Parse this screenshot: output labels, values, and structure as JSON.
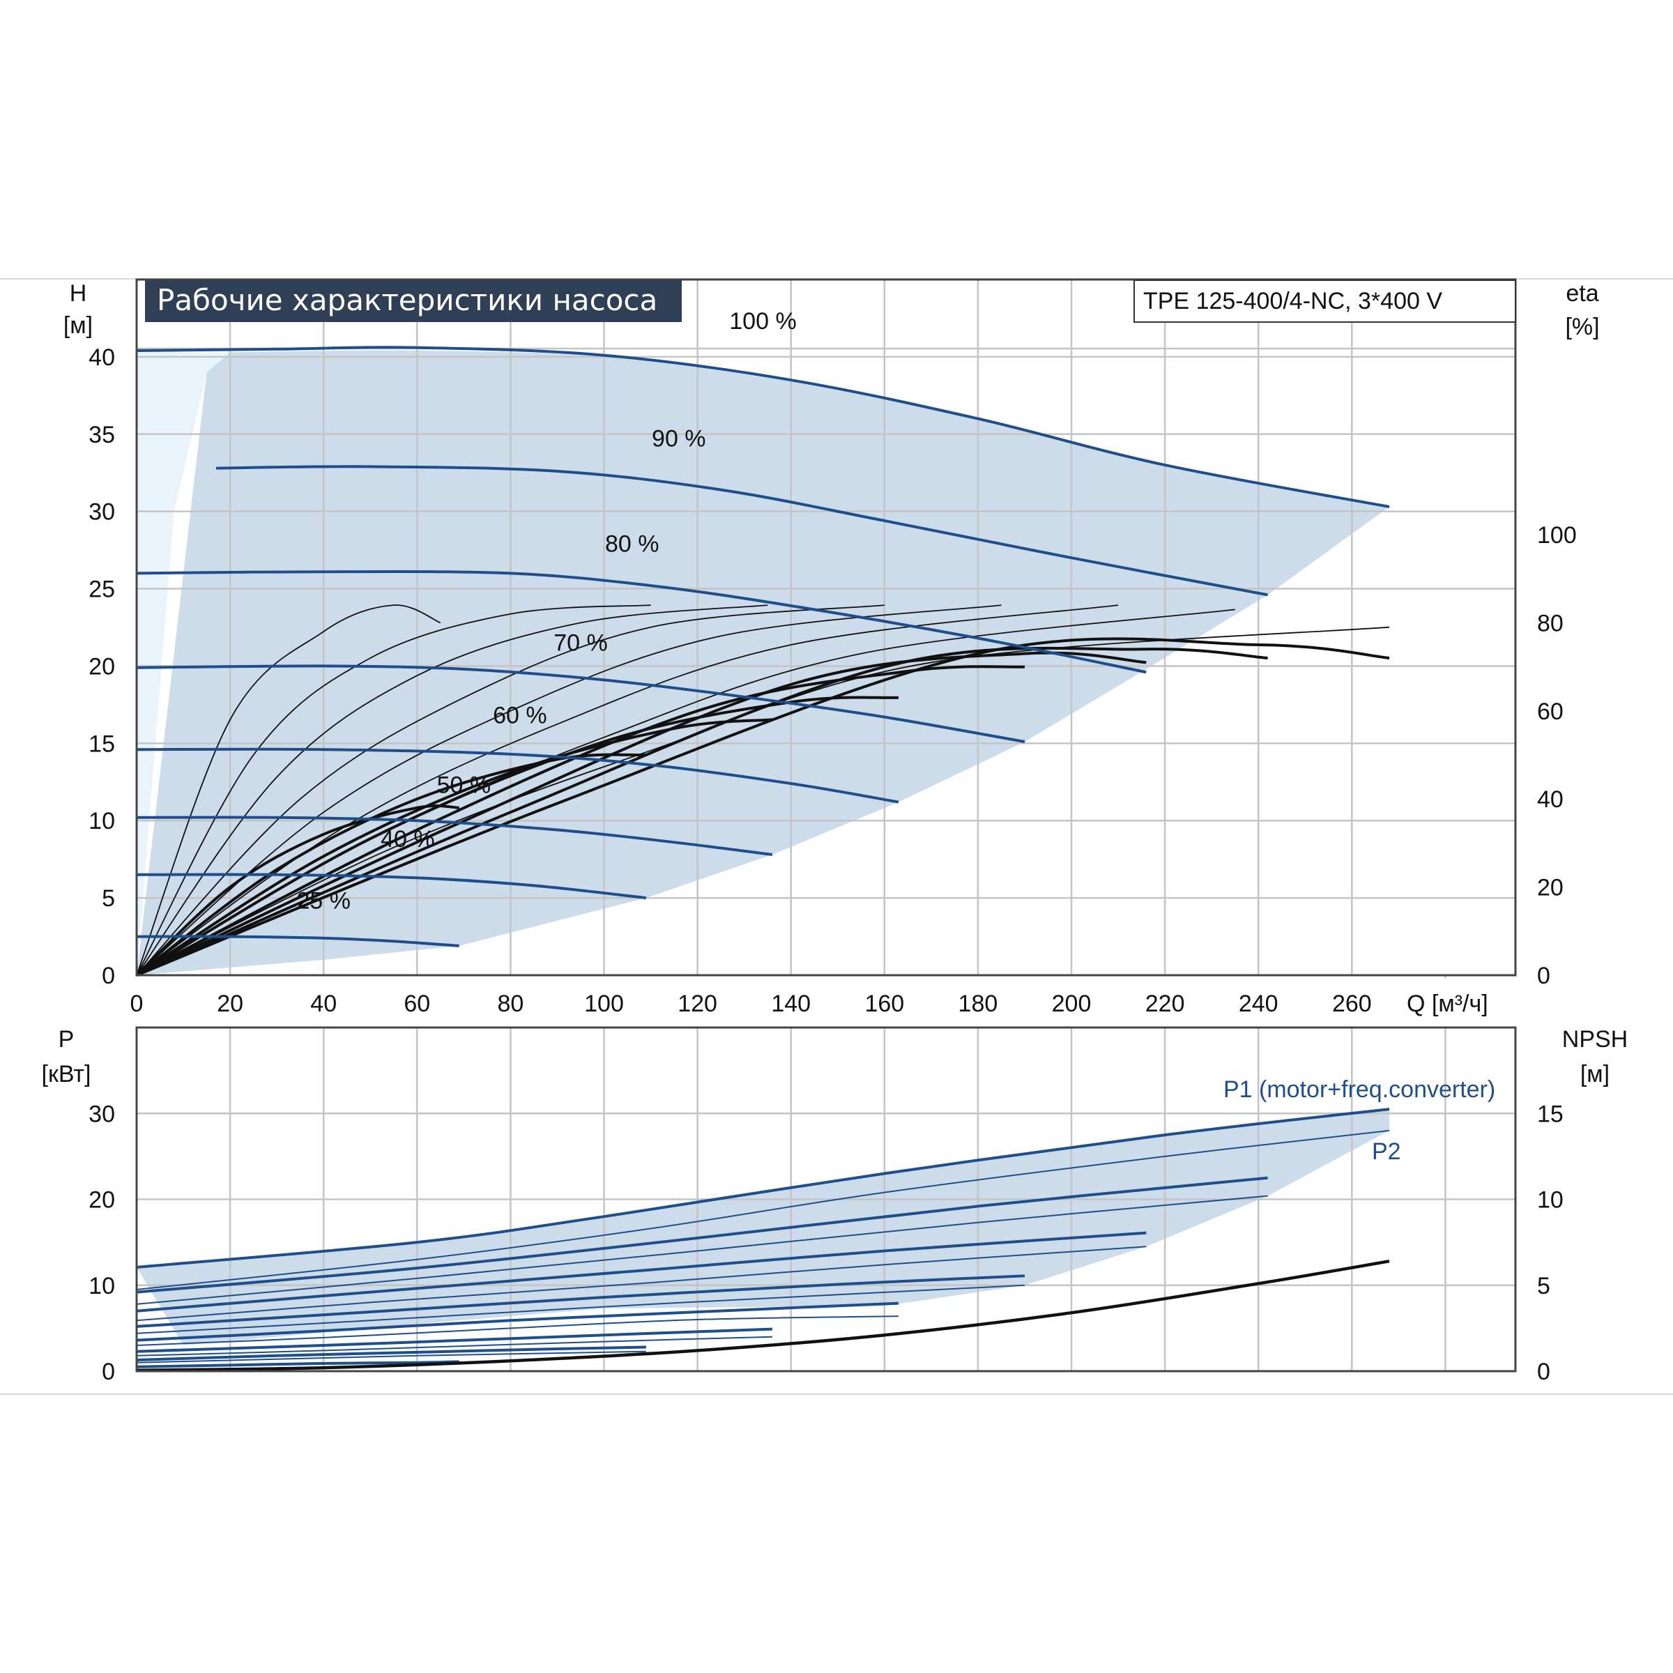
{
  "chart_data": [
    {
      "type": "line",
      "title": "Рабочие характеристики насоса",
      "model": "TPE 125-400/4-NC, 3*400 V",
      "xlabel": "Q [м³/ч]",
      "ylabel_line1": "H",
      "ylabel_line2": "[м]",
      "y2label_line1": "eta",
      "y2label_line2": "[%]",
      "xlim": [
        0,
        295
      ],
      "ylim": [
        0,
        45
      ],
      "y2lim": [
        0,
        100
      ],
      "x_ticks": [
        0,
        20,
        40,
        60,
        80,
        100,
        120,
        140,
        160,
        180,
        200,
        220,
        240,
        260
      ],
      "y_ticks": [
        0,
        5,
        10,
        15,
        20,
        25,
        30,
        35,
        40
      ],
      "y2_ticks": [
        0,
        20,
        40,
        60,
        80,
        100
      ],
      "grid": true,
      "colors": {
        "head": "#1f4e8c",
        "region": "#cddcea",
        "region_left": "#e9f3fb",
        "efficiency": "#111111"
      },
      "region_upper": [
        [
          20,
          40.3
        ],
        [
          60,
          40.4
        ],
        [
          100,
          40.0
        ],
        [
          140,
          38.4
        ],
        [
          180,
          36.0
        ],
        [
          220,
          33.0
        ],
        [
          268,
          30.3
        ]
      ],
      "region_lower": [
        [
          0,
          0
        ],
        [
          40,
          1.0
        ],
        [
          69,
          1.9
        ],
        [
          109,
          5.0
        ],
        [
          136,
          7.8
        ],
        [
          163,
          11.2
        ],
        [
          190,
          15.1
        ],
        [
          216,
          19.8
        ],
        [
          242,
          24.6
        ],
        [
          268,
          30.3
        ]
      ],
      "region_left_edge": [
        [
          0,
          0
        ],
        [
          8,
          30
        ],
        [
          15,
          39
        ],
        [
          20,
          40.3
        ],
        [
          0,
          40.3
        ]
      ],
      "series": [
        {
          "name": "100 %",
          "x": [
            0,
            30,
            60,
            100,
            140,
            180,
            220,
            268
          ],
          "y": [
            40.4,
            40.5,
            40.6,
            40.1,
            38.5,
            36.0,
            33.0,
            30.3
          ],
          "label_at": [
            134,
            41.8
          ]
        },
        {
          "name": "90 %",
          "x": [
            17,
            50,
            90,
            125,
            160,
            200,
            242
          ],
          "y": [
            32.8,
            32.9,
            32.6,
            31.4,
            29.4,
            27.0,
            24.6
          ],
          "label_at": [
            116,
            34.2
          ]
        },
        {
          "name": "80 %",
          "x": [
            0,
            40,
            80,
            110,
            140,
            180,
            216
          ],
          "y": [
            26.0,
            26.1,
            26.0,
            25.2,
            23.9,
            21.8,
            19.6
          ],
          "label_at": [
            106,
            27.4
          ]
        },
        {
          "name": "70 %",
          "x": [
            0,
            40,
            70,
            100,
            130,
            160,
            190
          ],
          "y": [
            19.9,
            20.0,
            19.8,
            19.1,
            18.0,
            16.7,
            15.1
          ],
          "label_at": [
            95,
            21.0
          ]
        },
        {
          "name": "60 %",
          "x": [
            0,
            40,
            80,
            110,
            140,
            163
          ],
          "y": [
            14.6,
            14.6,
            14.3,
            13.6,
            12.4,
            11.2
          ],
          "label_at": [
            82,
            16.3
          ]
        },
        {
          "name": "50 %",
          "x": [
            0,
            30,
            60,
            90,
            115,
            136
          ],
          "y": [
            10.2,
            10.2,
            10.0,
            9.4,
            8.6,
            7.8
          ],
          "label_at": [
            70,
            11.8
          ]
        },
        {
          "name": "40 %",
          "x": [
            0,
            30,
            60,
            85,
            109
          ],
          "y": [
            6.5,
            6.5,
            6.3,
            5.8,
            5.0
          ],
          "label_at": [
            58,
            8.3
          ]
        },
        {
          "name": "25 %",
          "x": [
            0,
            20,
            40,
            55,
            69
          ],
          "y": [
            2.5,
            2.5,
            2.4,
            2.2,
            1.9
          ],
          "label_at": [
            40,
            4.3
          ]
        }
      ],
      "efficiency_curves": [
        {
          "x": [
            0,
            20,
            40,
            55,
            65
          ],
          "y": [
            0,
            58,
            78,
            84,
            80
          ]
        },
        {
          "x": [
            0,
            25,
            50,
            80,
            110
          ],
          "y": [
            0,
            50,
            72,
            82,
            84
          ]
        },
        {
          "x": [
            0,
            30,
            60,
            95,
            135
          ],
          "y": [
            0,
            45,
            68,
            80,
            84
          ]
        },
        {
          "x": [
            0,
            35,
            70,
            110,
            160
          ],
          "y": [
            0,
            40,
            63,
            79,
            84
          ]
        },
        {
          "x": [
            0,
            40,
            80,
            125,
            185
          ],
          "y": [
            0,
            37,
            60,
            77,
            84
          ]
        },
        {
          "x": [
            0,
            45,
            90,
            140,
            210
          ],
          "y": [
            0,
            34,
            57,
            75,
            84
          ]
        },
        {
          "x": [
            0,
            50,
            100,
            155,
            235
          ],
          "y": [
            0,
            31,
            54,
            73,
            83
          ]
        },
        {
          "x": [
            0,
            55,
            110,
            170,
            268
          ],
          "y": [
            0,
            29,
            51,
            71,
            79
          ]
        }
      ],
      "efficiency_bold": [
        {
          "x": [
            0,
            20,
            40,
            60,
            69
          ],
          "y": [
            0,
            20,
            32,
            38,
            38
          ]
        },
        {
          "x": [
            0,
            30,
            60,
            90,
            109
          ],
          "y": [
            0,
            24,
            40,
            49,
            50
          ]
        },
        {
          "x": [
            0,
            40,
            80,
            115,
            136
          ],
          "y": [
            0,
            27,
            46,
            56,
            58
          ]
        },
        {
          "x": [
            0,
            50,
            100,
            140,
            163
          ],
          "y": [
            0,
            31,
            53,
            62,
            63
          ]
        },
        {
          "x": [
            0,
            60,
            120,
            165,
            190
          ],
          "y": [
            0,
            33,
            60,
            69,
            70
          ]
        },
        {
          "x": [
            0,
            70,
            140,
            190,
            216
          ],
          "y": [
            0,
            35,
            66,
            73,
            71
          ]
        },
        {
          "x": [
            0,
            80,
            160,
            215,
            242
          ],
          "y": [
            0,
            37,
            70,
            74,
            72
          ]
        },
        {
          "x": [
            0,
            90,
            180,
            240,
            268
          ],
          "y": [
            0,
            39,
            73,
            75,
            72
          ]
        }
      ]
    },
    {
      "type": "line",
      "ylabel_line1": "P",
      "ylabel_line2": "[кВт]",
      "y2label_line1": "NPSH",
      "y2label_line2": "[м]",
      "xlim": [
        0,
        295
      ],
      "ylim": [
        0,
        40
      ],
      "y2lim": [
        0,
        20
      ],
      "y_ticks": [
        0,
        10,
        20,
        30
      ],
      "y2_ticks": [
        0,
        5,
        10,
        15
      ],
      "grid": true,
      "colors": {
        "p1": "#1f4e8c",
        "p2": "#1f4e8c",
        "region": "#cddcea",
        "npsh": "#111111"
      },
      "label_p1": "P1 (motor+freq.converter)",
      "label_p2": "P2",
      "region_upper": [
        [
          0,
          12.1
        ],
        [
          60,
          15.0
        ],
        [
          100,
          18.0
        ],
        [
          160,
          23.0
        ],
        [
          220,
          27.5
        ],
        [
          268,
          30.5
        ]
      ],
      "region_lower": [
        [
          10,
          3.0
        ],
        [
          30,
          4.0
        ],
        [
          60,
          5.5
        ],
        [
          100,
          7.3
        ],
        [
          160,
          7.6
        ],
        [
          190,
          10.0
        ],
        [
          216,
          14.5
        ],
        [
          242,
          20.4
        ],
        [
          268,
          28.0
        ]
      ],
      "p1_curves": [
        {
          "x": [
            0,
            60,
            100,
            160,
            220,
            268
          ],
          "y": [
            12.1,
            15.0,
            18.0,
            23.0,
            27.5,
            30.5
          ]
        },
        {
          "x": [
            0,
            60,
            120,
            180,
            242
          ],
          "y": [
            9.2,
            12.0,
            15.5,
            19.2,
            22.5
          ]
        },
        {
          "x": [
            0,
            50,
            110,
            160,
            216
          ],
          "y": [
            7.0,
            9.2,
            11.8,
            14.0,
            16.1
          ]
        },
        {
          "x": [
            0,
            50,
            100,
            150,
            190
          ],
          "y": [
            5.2,
            6.9,
            8.6,
            10.1,
            11.1
          ]
        },
        {
          "x": [
            0,
            40,
            80,
            120,
            163
          ],
          "y": [
            3.6,
            4.7,
            5.9,
            6.9,
            7.9
          ]
        },
        {
          "x": [
            0,
            40,
            80,
            110,
            136
          ],
          "y": [
            2.3,
            3.0,
            3.8,
            4.4,
            4.9
          ]
        },
        {
          "x": [
            0,
            30,
            60,
            90,
            109
          ],
          "y": [
            1.3,
            1.8,
            2.2,
            2.6,
            2.8
          ]
        },
        {
          "x": [
            0,
            20,
            40,
            60,
            69
          ],
          "y": [
            0.5,
            0.7,
            0.9,
            1.0,
            1.1
          ]
        }
      ],
      "p2_curves": [
        {
          "x": [
            0,
            60,
            110,
            160,
            220,
            268
          ],
          "y": [
            9.5,
            13.0,
            16.6,
            20.8,
            25.0,
            28.0
          ]
        },
        {
          "x": [
            0,
            60,
            120,
            180,
            242
          ],
          "y": [
            7.8,
            10.8,
            14.0,
            17.3,
            20.4
          ]
        },
        {
          "x": [
            0,
            50,
            110,
            160,
            216
          ],
          "y": [
            5.9,
            8.0,
            10.3,
            12.4,
            14.5
          ]
        },
        {
          "x": [
            0,
            50,
            100,
            150,
            190
          ],
          "y": [
            4.4,
            5.9,
            7.5,
            8.9,
            10.0
          ]
        },
        {
          "x": [
            0,
            40,
            80,
            120,
            163
          ],
          "y": [
            3.0,
            3.9,
            5.0,
            6.0,
            6.4
          ]
        },
        {
          "x": [
            0,
            40,
            80,
            110,
            136
          ],
          "y": [
            1.8,
            2.4,
            3.1,
            3.6,
            4.0
          ]
        },
        {
          "x": [
            0,
            30,
            60,
            90,
            109
          ],
          "y": [
            1.0,
            1.4,
            1.8,
            2.1,
            2.3
          ]
        }
      ],
      "npsh_curve": {
        "x": [
          0,
          40,
          80,
          120,
          160,
          200,
          240,
          268
        ],
        "y": [
          0.05,
          0.2,
          0.6,
          1.2,
          2.1,
          3.4,
          5.1,
          6.4
        ]
      }
    }
  ]
}
